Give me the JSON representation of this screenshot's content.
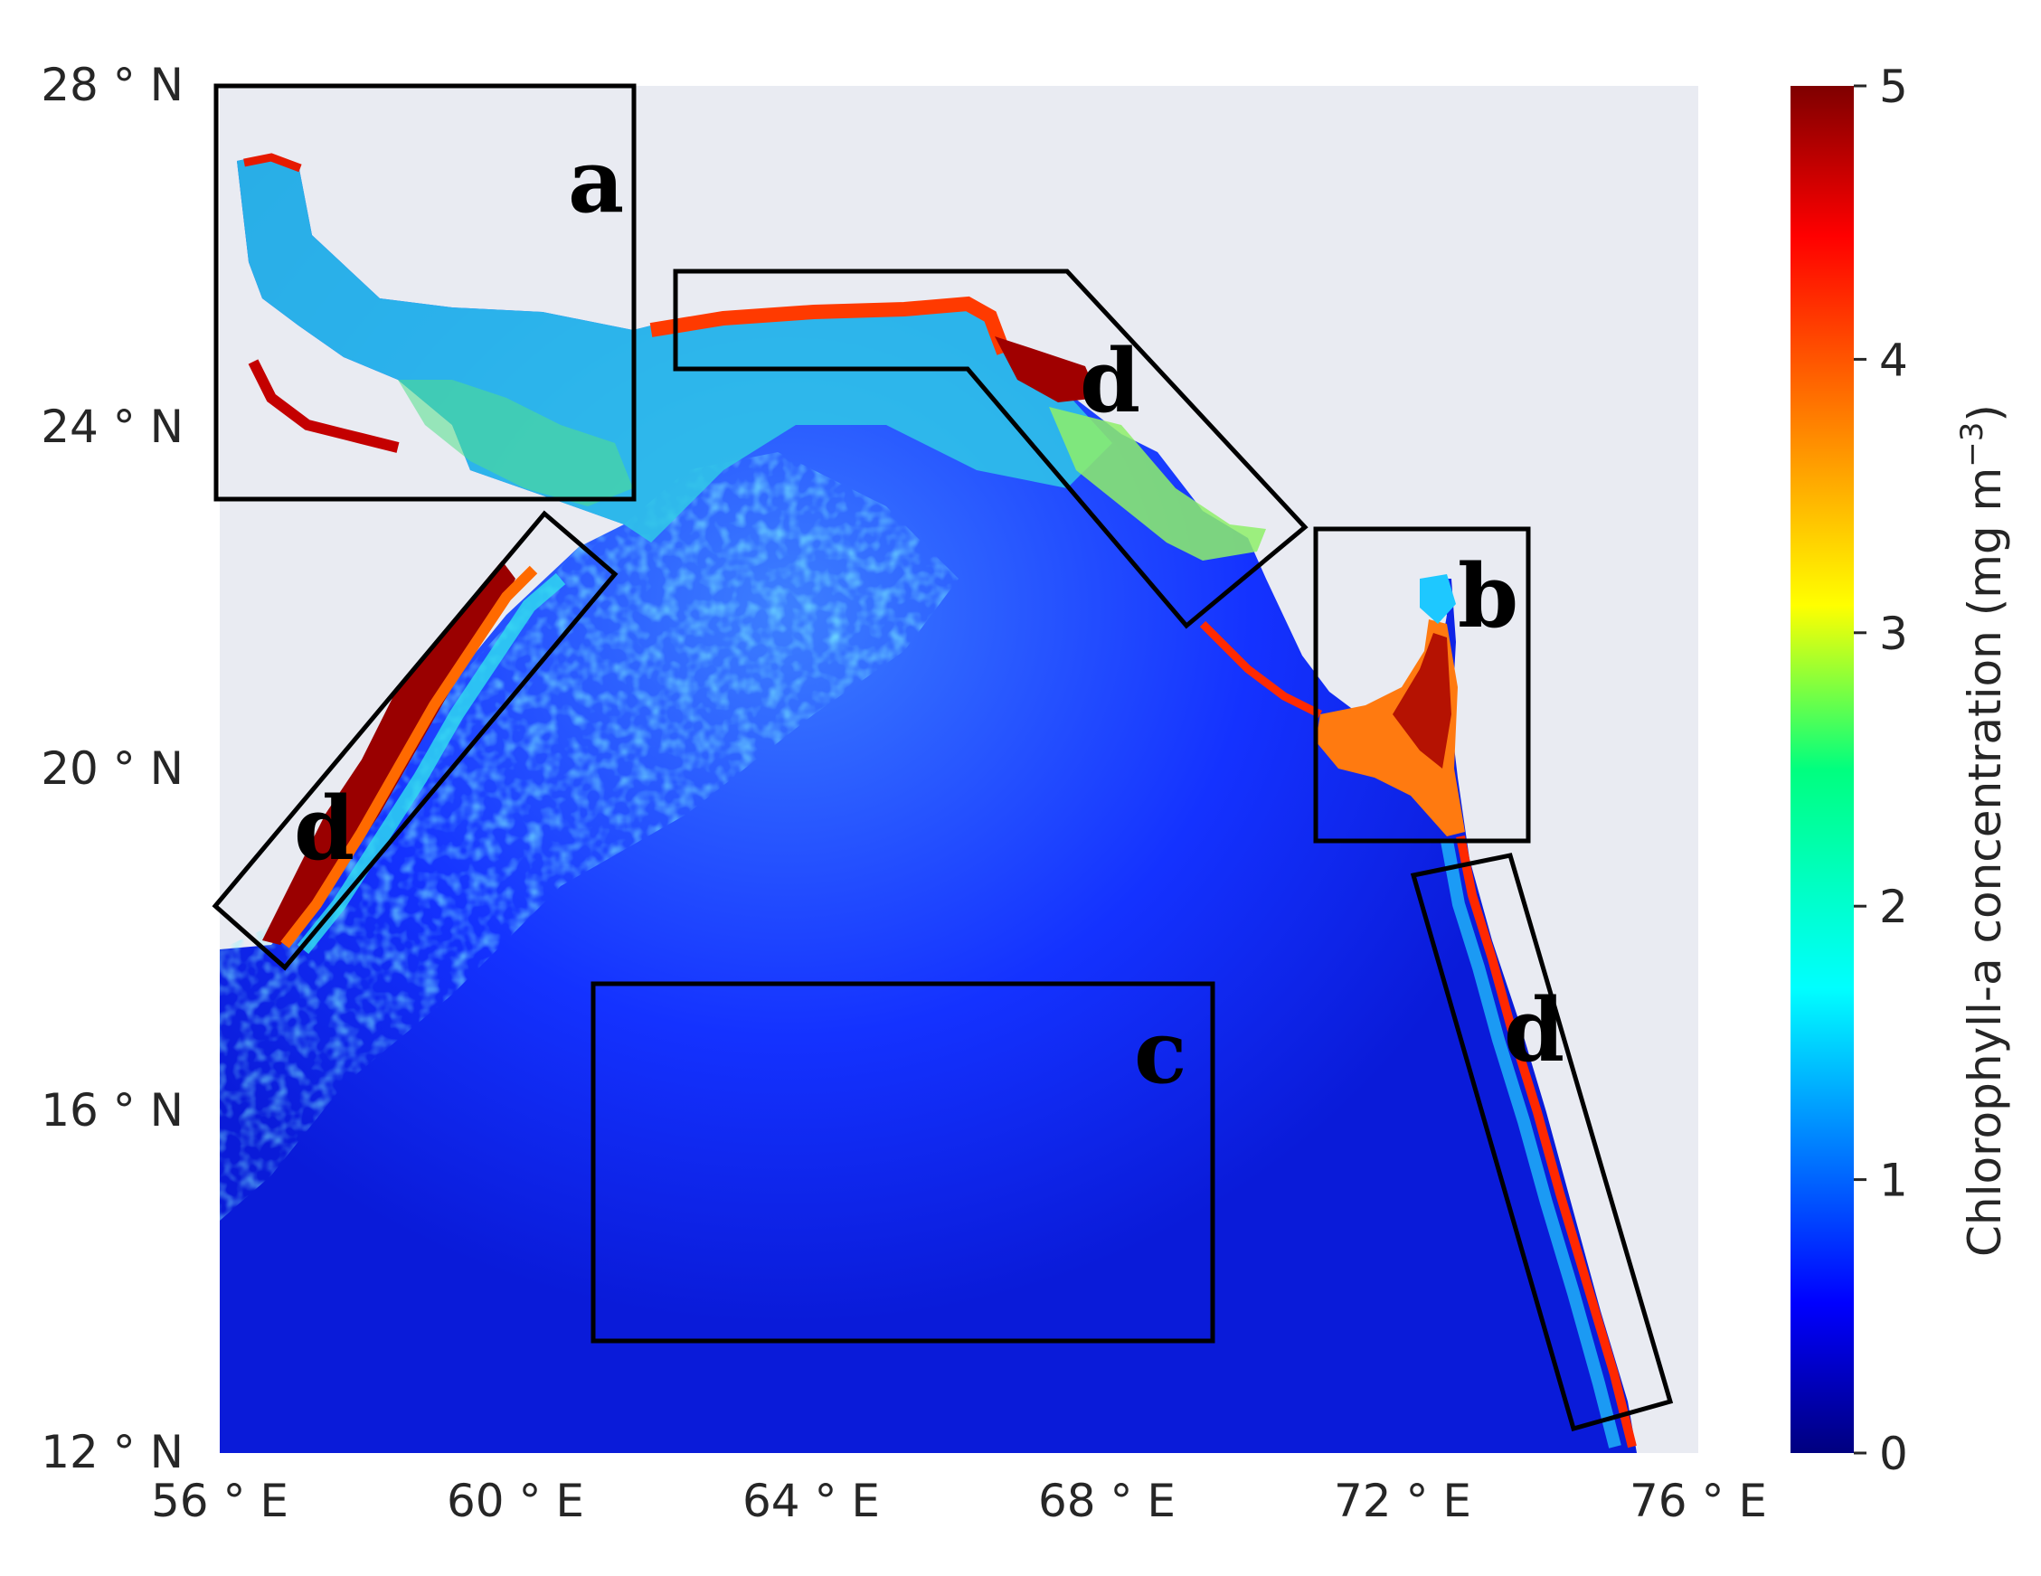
{
  "map": {
    "lon_range": [
      56,
      76
    ],
    "lat_range": [
      12,
      28
    ],
    "background_color": "#e9ebf2",
    "lon_ticks": [
      {
        "value": 56,
        "label": "56 ° E"
      },
      {
        "value": 60,
        "label": "60 ° E"
      },
      {
        "value": 64,
        "label": "64 ° E"
      },
      {
        "value": 68,
        "label": "68 ° E"
      },
      {
        "value": 72,
        "label": "72 ° E"
      },
      {
        "value": 76,
        "label": "76 ° E"
      }
    ],
    "lat_ticks": [
      {
        "value": 28,
        "label": "28 ° N"
      },
      {
        "value": 24,
        "label": "24 ° N"
      },
      {
        "value": 20,
        "label": "20 ° N"
      },
      {
        "value": 16,
        "label": "16 ° N"
      },
      {
        "value": 12,
        "label": "12 ° N"
      }
    ],
    "regions": [
      {
        "label": "a",
        "name": "region-a"
      },
      {
        "label": "b",
        "name": "region-b"
      },
      {
        "label": "c",
        "name": "region-c"
      },
      {
        "label": "d",
        "name": "region-d-north"
      },
      {
        "label": "d",
        "name": "region-d-oman"
      },
      {
        "label": "d",
        "name": "region-d-india"
      }
    ]
  },
  "colorbar": {
    "label": "Chlorophyll-a concentration (mg m",
    "label_exponent": "−3",
    "label_close": ")",
    "min": 0,
    "max": 5,
    "colormap": "jet",
    "ticks": [
      {
        "value": 0,
        "label": "0"
      },
      {
        "value": 1,
        "label": "1"
      },
      {
        "value": 2,
        "label": "2"
      },
      {
        "value": 3,
        "label": "3"
      },
      {
        "value": 4,
        "label": "4"
      },
      {
        "value": 5,
        "label": "5"
      }
    ]
  }
}
